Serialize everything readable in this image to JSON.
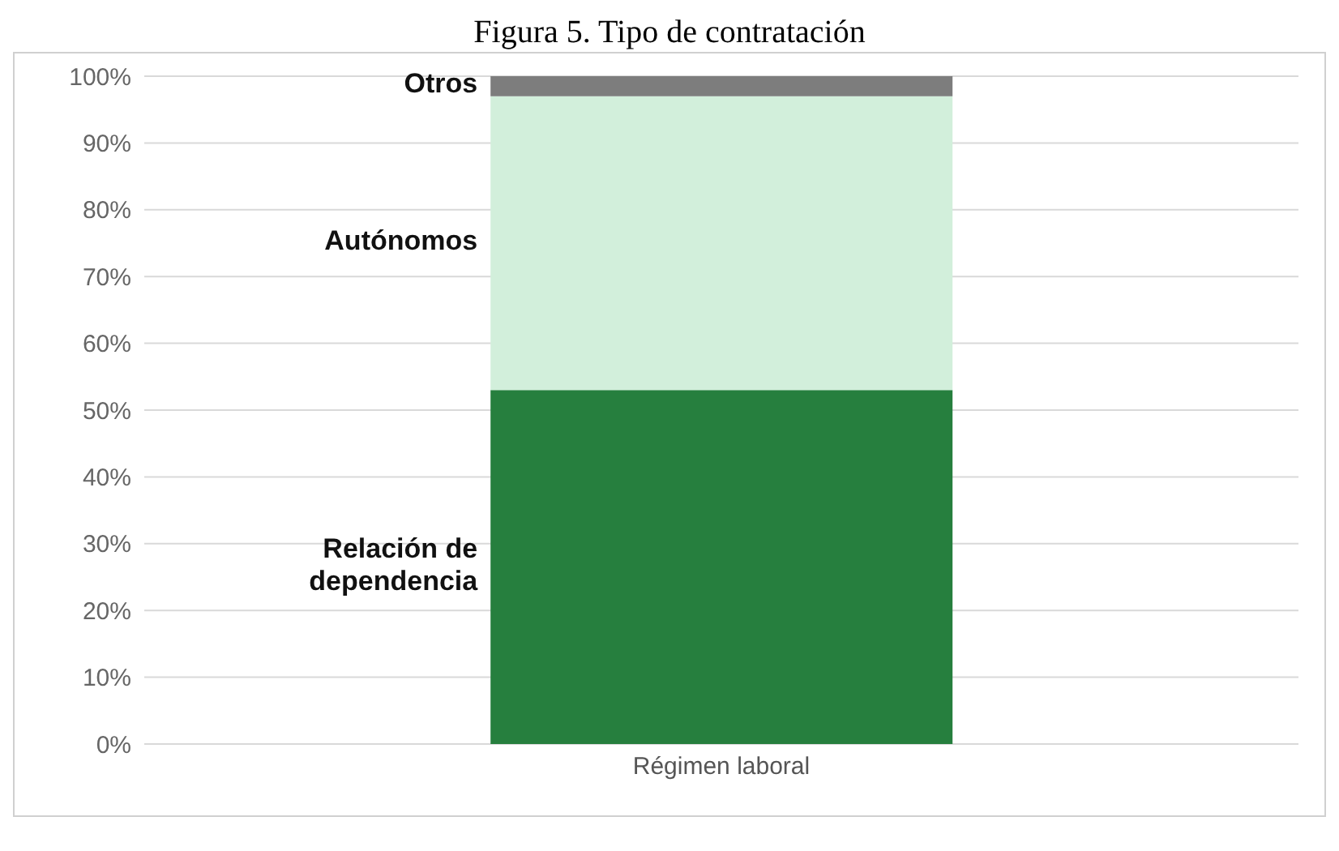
{
  "chart_data": {
    "type": "bar",
    "title": "Figura 5. Tipo de contratación",
    "categories": [
      "Régimen laboral"
    ],
    "stacked": true,
    "series": [
      {
        "name": "Relación de dependencia",
        "color": "#267f3e",
        "values": [
          53
        ]
      },
      {
        "name": "Autónomos",
        "color": "#d2efdb",
        "values": [
          44
        ]
      },
      {
        "name": "Otros",
        "color": "#7d7d7d",
        "values": [
          3
        ]
      }
    ],
    "ylim": [
      0,
      100
    ],
    "yticks": [
      {
        "value": 0,
        "label": "0%"
      },
      {
        "value": 10,
        "label": "10%"
      },
      {
        "value": 20,
        "label": "20%"
      },
      {
        "value": 30,
        "label": "30%"
      },
      {
        "value": 40,
        "label": "40%"
      },
      {
        "value": 50,
        "label": "50%"
      },
      {
        "value": 60,
        "label": "60%"
      },
      {
        "value": 70,
        "label": "70%"
      },
      {
        "value": 80,
        "label": "80%"
      },
      {
        "value": 90,
        "label": "90%"
      },
      {
        "value": 100,
        "label": "100%"
      }
    ],
    "grid": "y",
    "legend": false
  }
}
